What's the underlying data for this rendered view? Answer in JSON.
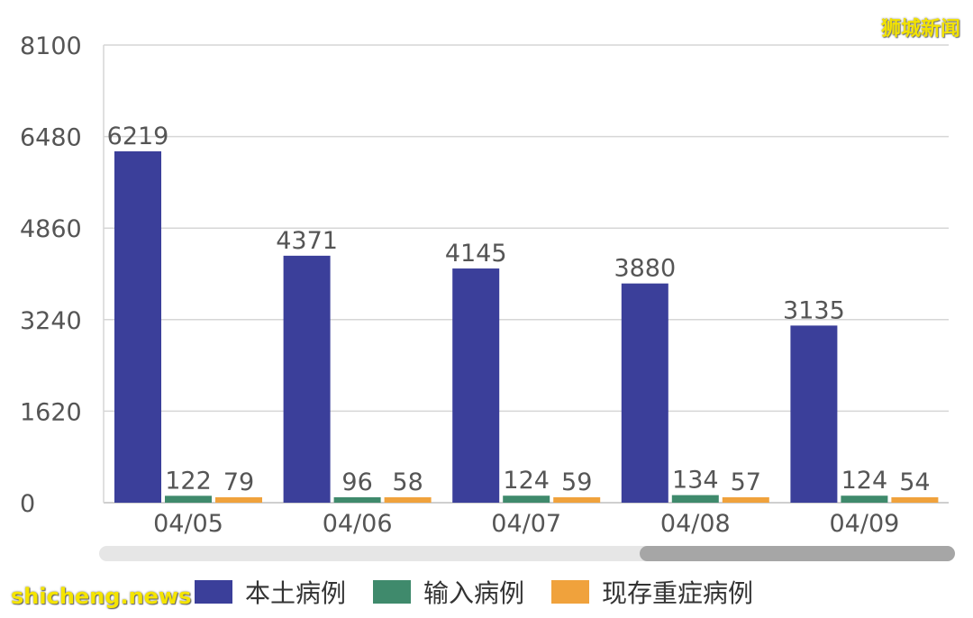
{
  "watermark_text": "狮城新闻",
  "site_tag": "shicheng.news",
  "legend": [
    {
      "label": "本土病例",
      "color": "#3b3f9a"
    },
    {
      "label": "输入病例",
      "color": "#3f8a6c"
    },
    {
      "label": "现存重症病例",
      "color": "#f0a23c"
    }
  ],
  "chart_data": {
    "type": "bar",
    "categories": [
      "04/05",
      "04/06",
      "04/07",
      "04/08",
      "04/09"
    ],
    "series": [
      {
        "name": "本土病例",
        "values": [
          6219,
          4371,
          4145,
          3880,
          3135
        ],
        "color": "#3b3f9a"
      },
      {
        "name": "输入病例",
        "values": [
          122,
          96,
          124,
          134,
          124
        ],
        "color": "#3f8a6c"
      },
      {
        "name": "现存重症病例",
        "values": [
          79,
          58,
          59,
          57,
          54
        ],
        "color": "#f0a23c"
      }
    ],
    "yticks": [
      "0",
      "1620",
      "3240",
      "4860",
      "6480",
      "8100"
    ],
    "ylim": [
      0,
      8100
    ],
    "grid": true,
    "legend_position": "bottom",
    "scrollbar": {
      "track_color": "#e6e6e6",
      "thumb_color": "#a6a6a6"
    }
  }
}
